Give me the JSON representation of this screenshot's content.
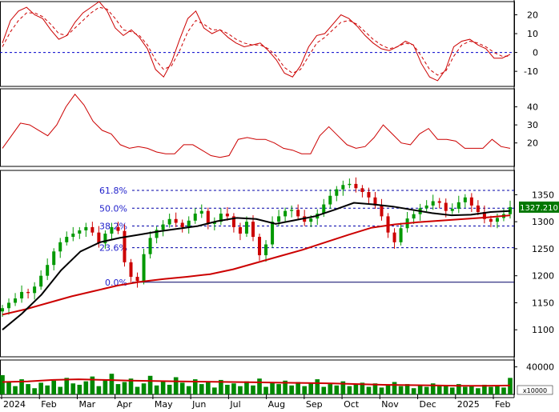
{
  "chart_data": [
    {
      "type": "line",
      "panel": "oscillator",
      "y_ticks": [
        20,
        10,
        0,
        -10
      ],
      "ylim": [
        -18,
        27
      ],
      "zero_line": 0,
      "series": [
        {
          "role": "fast",
          "color": "#cc0000",
          "style": "solid",
          "values": [
            5,
            17,
            22,
            24,
            20,
            18,
            12,
            7,
            9,
            16,
            21,
            24,
            27,
            22,
            13,
            9,
            12,
            8,
            2,
            -9,
            -13,
            -5,
            7,
            18,
            22,
            13,
            10,
            12,
            8,
            5,
            3,
            4,
            5,
            1,
            -4,
            -11,
            -13,
            -7,
            3,
            9,
            10,
            15,
            20,
            18,
            14,
            9,
            5,
            2,
            1,
            3,
            6,
            4,
            -6,
            -13,
            -15,
            -9,
            3,
            6,
            7,
            4,
            2,
            -3,
            -3,
            -1
          ]
        },
        {
          "role": "signal",
          "color": "#cc0000",
          "style": "dashed",
          "values": [
            3,
            11,
            17,
            21,
            21,
            19,
            15,
            10,
            9,
            13,
            17,
            21,
            24,
            23,
            18,
            12,
            11,
            9,
            4,
            -4,
            -9,
            -7,
            1,
            11,
            17,
            15,
            12,
            12,
            10,
            7,
            5,
            4,
            4,
            2,
            -2,
            -8,
            -11,
            -9,
            -2,
            5,
            8,
            12,
            16,
            17,
            15,
            11,
            7,
            4,
            2,
            3,
            5,
            4,
            -2,
            -9,
            -12,
            -10,
            -2,
            4,
            6,
            5,
            3,
            0,
            -2,
            -2
          ]
        }
      ]
    },
    {
      "type": "line",
      "panel": "indicator",
      "y_ticks": [
        40,
        30,
        20
      ],
      "ylim": [
        7,
        50
      ],
      "series": [
        {
          "color": "#cc0000",
          "values": [
            17,
            24,
            31,
            30,
            27,
            24,
            30,
            40,
            47,
            41,
            32,
            27,
            25,
            19,
            17,
            18,
            17,
            15,
            14,
            14,
            19,
            19,
            16,
            13,
            12,
            13,
            22,
            23,
            22,
            22,
            20,
            17,
            16,
            14,
            14,
            24,
            29,
            24,
            19,
            17,
            18,
            23,
            30,
            25,
            20,
            19,
            25,
            28,
            22,
            22,
            21,
            17,
            17,
            17,
            22,
            18,
            17
          ]
        }
      ]
    },
    {
      "type": "candlestick",
      "panel": "price",
      "x_tick_labels": [
        "2024",
        "Feb",
        "Mar",
        "Apr",
        "May",
        "Jun",
        "Jul",
        "Aug",
        "Sep",
        "Oct",
        "Nov",
        "Dec",
        "2025",
        "Feb"
      ],
      "y_ticks": [
        1350,
        1300,
        1250,
        1200,
        1150,
        1100
      ],
      "ylim": [
        1050,
        1395
      ],
      "last_price_label": "1327.210",
      "close": [
        1140,
        1150,
        1158,
        1170,
        1168,
        1180,
        1200,
        1220,
        1245,
        1262,
        1272,
        1278,
        1284,
        1290,
        1280,
        1260,
        1278,
        1290,
        1283,
        1225,
        1198,
        1190,
        1240,
        1270,
        1285,
        1295,
        1305,
        1298,
        1290,
        1302,
        1315,
        1320,
        1296,
        1300,
        1315,
        1310,
        1290,
        1278,
        1300,
        1272,
        1238,
        1258,
        1300,
        1310,
        1320,
        1322,
        1310,
        1300,
        1306,
        1315,
        1332,
        1348,
        1360,
        1368,
        1370,
        1362,
        1355,
        1345,
        1330,
        1310,
        1280,
        1262,
        1288,
        1306,
        1314,
        1325,
        1330,
        1338,
        1335,
        1320,
        1324,
        1336,
        1345,
        1330,
        1318,
        1305,
        1300,
        1307,
        1314,
        1327
      ],
      "fib_levels": [
        {
          "label": "61.8%",
          "value": 1358
        },
        {
          "label": "50.0%",
          "value": 1325
        },
        {
          "label": "38.2%",
          "value": 1292
        },
        {
          "label": "23.6%",
          "value": 1252
        },
        {
          "label": "0.0%",
          "value": 1188
        }
      ],
      "series": [
        {
          "role": "slow-average",
          "color": "#cc0000",
          "values": [
            1128,
            1138,
            1150,
            1162,
            1172,
            1182,
            1189,
            1194,
            1198,
            1203,
            1212,
            1224,
            1236,
            1248,
            1262,
            1276,
            1289,
            1295,
            1299,
            1302,
            1305,
            1308,
            1312
          ]
        },
        {
          "role": "fast-average",
          "color": "#000000",
          "values": [
            1100,
            1130,
            1165,
            1210,
            1245,
            1262,
            1270,
            1276,
            1282,
            1287,
            1292,
            1301,
            1307,
            1305,
            1296,
            1303,
            1310,
            1322,
            1335,
            1332,
            1328,
            1322,
            1316,
            1312,
            1313,
            1318,
            1320
          ]
        }
      ]
    },
    {
      "type": "bar",
      "panel": "volume",
      "y_ticks": [
        40000
      ],
      "ylim": [
        0,
        50000
      ],
      "unit_label": "x10000",
      "values": [
        28000,
        18000,
        12000,
        22000,
        15000,
        9000,
        17000,
        13000,
        20000,
        11000,
        24000,
        16000,
        14000,
        19000,
        26000,
        12000,
        21000,
        30000,
        15000,
        18000,
        23000,
        11000,
        16000,
        27000,
        13000,
        19000,
        14000,
        25000,
        17000,
        12000,
        22000,
        15000,
        18000,
        10000,
        21000,
        14000,
        16000,
        12000,
        19000,
        13000,
        23000,
        11000,
        17000,
        15000,
        20000,
        13000,
        18000,
        12000,
        16000,
        22000,
        11000,
        15000,
        13000,
        19000,
        12000,
        14000,
        17000,
        11000,
        16000,
        10000,
        13000,
        18000,
        12000,
        15000,
        9000,
        14000,
        11000,
        16000,
        12000,
        13000,
        10000,
        15000,
        11000,
        12000,
        9000,
        14000,
        11000,
        13000,
        10000,
        24000
      ],
      "series": [
        {
          "role": "volume-average",
          "color": "#cc0000",
          "values": [
            18000,
            19000,
            21000,
            22000,
            21000,
            20000,
            19500,
            19000,
            18500,
            18000,
            17500,
            17000,
            16500,
            16000,
            15000,
            14000,
            13500,
            13000,
            12500,
            12500,
            13000
          ]
        }
      ]
    }
  ]
}
